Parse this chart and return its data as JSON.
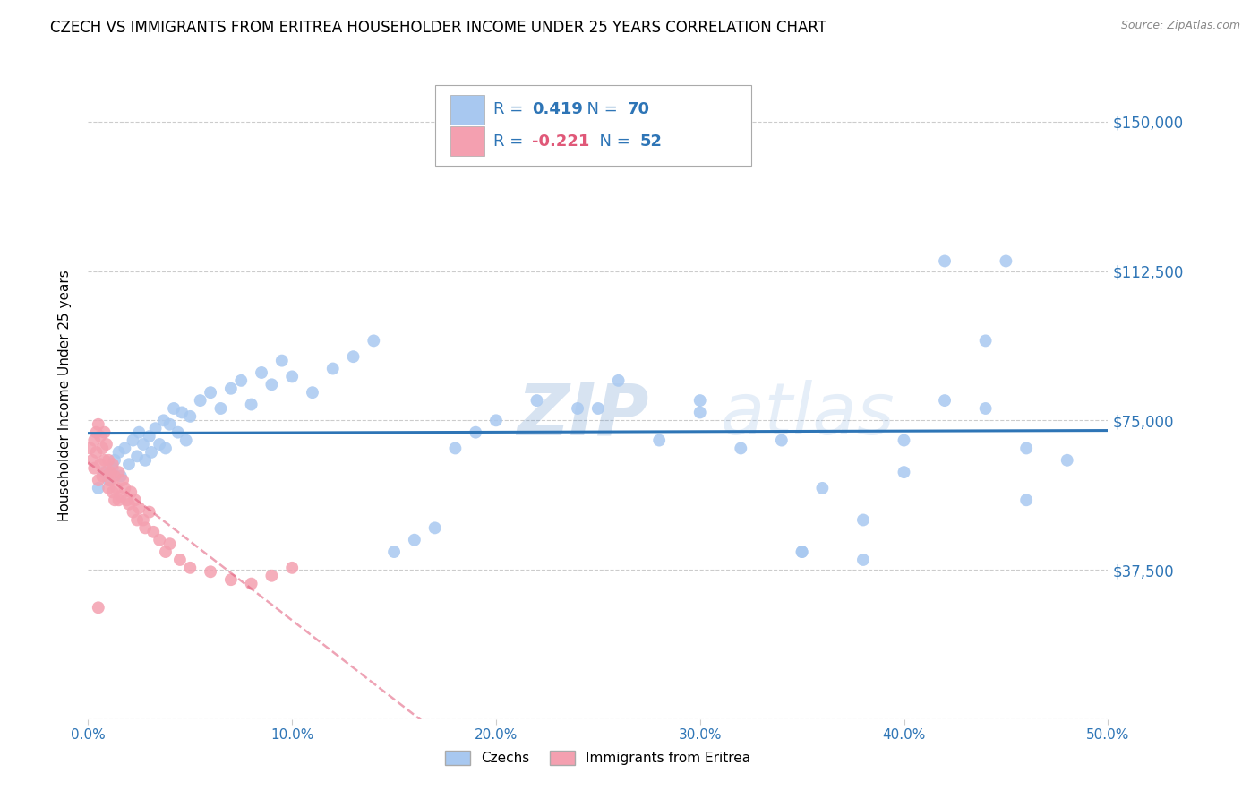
{
  "title": "CZECH VS IMMIGRANTS FROM ERITREA HOUSEHOLDER INCOME UNDER 25 YEARS CORRELATION CHART",
  "source": "Source: ZipAtlas.com",
  "ylabel": "Householder Income Under 25 years",
  "xlim": [
    0.0,
    0.5
  ],
  "ylim": [
    0,
    162500
  ],
  "yticks": [
    0,
    37500,
    75000,
    112500,
    150000
  ],
  "ytick_labels": [
    "",
    "$37,500",
    "$75,000",
    "$112,500",
    "$150,000"
  ],
  "xticks": [
    0.0,
    0.1,
    0.2,
    0.3,
    0.4,
    0.5
  ],
  "xtick_labels": [
    "0.0%",
    "10.0%",
    "20.0%",
    "30.0%",
    "40.0%",
    "50.0%"
  ],
  "blue_R": "0.419",
  "blue_N": "70",
  "pink_R": "-0.221",
  "pink_N": "52",
  "blue_color": "#a8c8f0",
  "pink_color": "#f4a0b0",
  "blue_line_color": "#2e75b6",
  "pink_line_color": "#e05878",
  "legend_label_blue": "Czechs",
  "legend_label_pink": "Immigrants from Eritrea",
  "watermark_zip": "ZIP",
  "watermark_atlas": "atlas",
  "background_color": "#ffffff",
  "grid_color": "#cccccc",
  "title_fontsize": 12,
  "blue_x": [
    0.005,
    0.008,
    0.01,
    0.012,
    0.013,
    0.015,
    0.016,
    0.018,
    0.02,
    0.022,
    0.024,
    0.025,
    0.027,
    0.028,
    0.03,
    0.031,
    0.033,
    0.035,
    0.037,
    0.038,
    0.04,
    0.042,
    0.044,
    0.046,
    0.048,
    0.05,
    0.055,
    0.06,
    0.065,
    0.07,
    0.075,
    0.08,
    0.085,
    0.09,
    0.095,
    0.1,
    0.11,
    0.12,
    0.13,
    0.14,
    0.15,
    0.16,
    0.17,
    0.18,
    0.19,
    0.2,
    0.22,
    0.24,
    0.26,
    0.28,
    0.3,
    0.32,
    0.34,
    0.36,
    0.38,
    0.4,
    0.42,
    0.44,
    0.46,
    0.48,
    0.25,
    0.3,
    0.35,
    0.4,
    0.42,
    0.45,
    0.35,
    0.38,
    0.44,
    0.46
  ],
  "blue_y": [
    58000,
    62000,
    60000,
    63000,
    65000,
    67000,
    61000,
    68000,
    64000,
    70000,
    66000,
    72000,
    69000,
    65000,
    71000,
    67000,
    73000,
    69000,
    75000,
    68000,
    74000,
    78000,
    72000,
    77000,
    70000,
    76000,
    80000,
    82000,
    78000,
    83000,
    85000,
    79000,
    87000,
    84000,
    90000,
    86000,
    82000,
    88000,
    91000,
    95000,
    42000,
    45000,
    48000,
    68000,
    72000,
    75000,
    80000,
    78000,
    85000,
    70000,
    77000,
    68000,
    70000,
    58000,
    50000,
    62000,
    80000,
    78000,
    55000,
    65000,
    78000,
    80000,
    42000,
    70000,
    115000,
    115000,
    42000,
    40000,
    95000,
    68000
  ],
  "pink_x": [
    0.001,
    0.002,
    0.003,
    0.003,
    0.004,
    0.004,
    0.005,
    0.005,
    0.006,
    0.006,
    0.007,
    0.007,
    0.008,
    0.008,
    0.009,
    0.009,
    0.01,
    0.01,
    0.011,
    0.011,
    0.012,
    0.012,
    0.013,
    0.013,
    0.014,
    0.015,
    0.016,
    0.017,
    0.018,
    0.019,
    0.02,
    0.021,
    0.022,
    0.023,
    0.024,
    0.025,
    0.027,
    0.028,
    0.03,
    0.032,
    0.035,
    0.038,
    0.04,
    0.045,
    0.05,
    0.06,
    0.07,
    0.08,
    0.09,
    0.1,
    0.005,
    0.015
  ],
  "pink_y": [
    68000,
    65000,
    70000,
    63000,
    72000,
    67000,
    74000,
    60000,
    71000,
    64000,
    68000,
    61000,
    65000,
    72000,
    62000,
    69000,
    58000,
    65000,
    62000,
    60000,
    64000,
    57000,
    61000,
    55000,
    58000,
    62000,
    56000,
    60000,
    58000,
    55000,
    54000,
    57000,
    52000,
    55000,
    50000,
    53000,
    50000,
    48000,
    52000,
    47000,
    45000,
    42000,
    44000,
    40000,
    38000,
    37000,
    35000,
    34000,
    36000,
    38000,
    28000,
    55000
  ]
}
